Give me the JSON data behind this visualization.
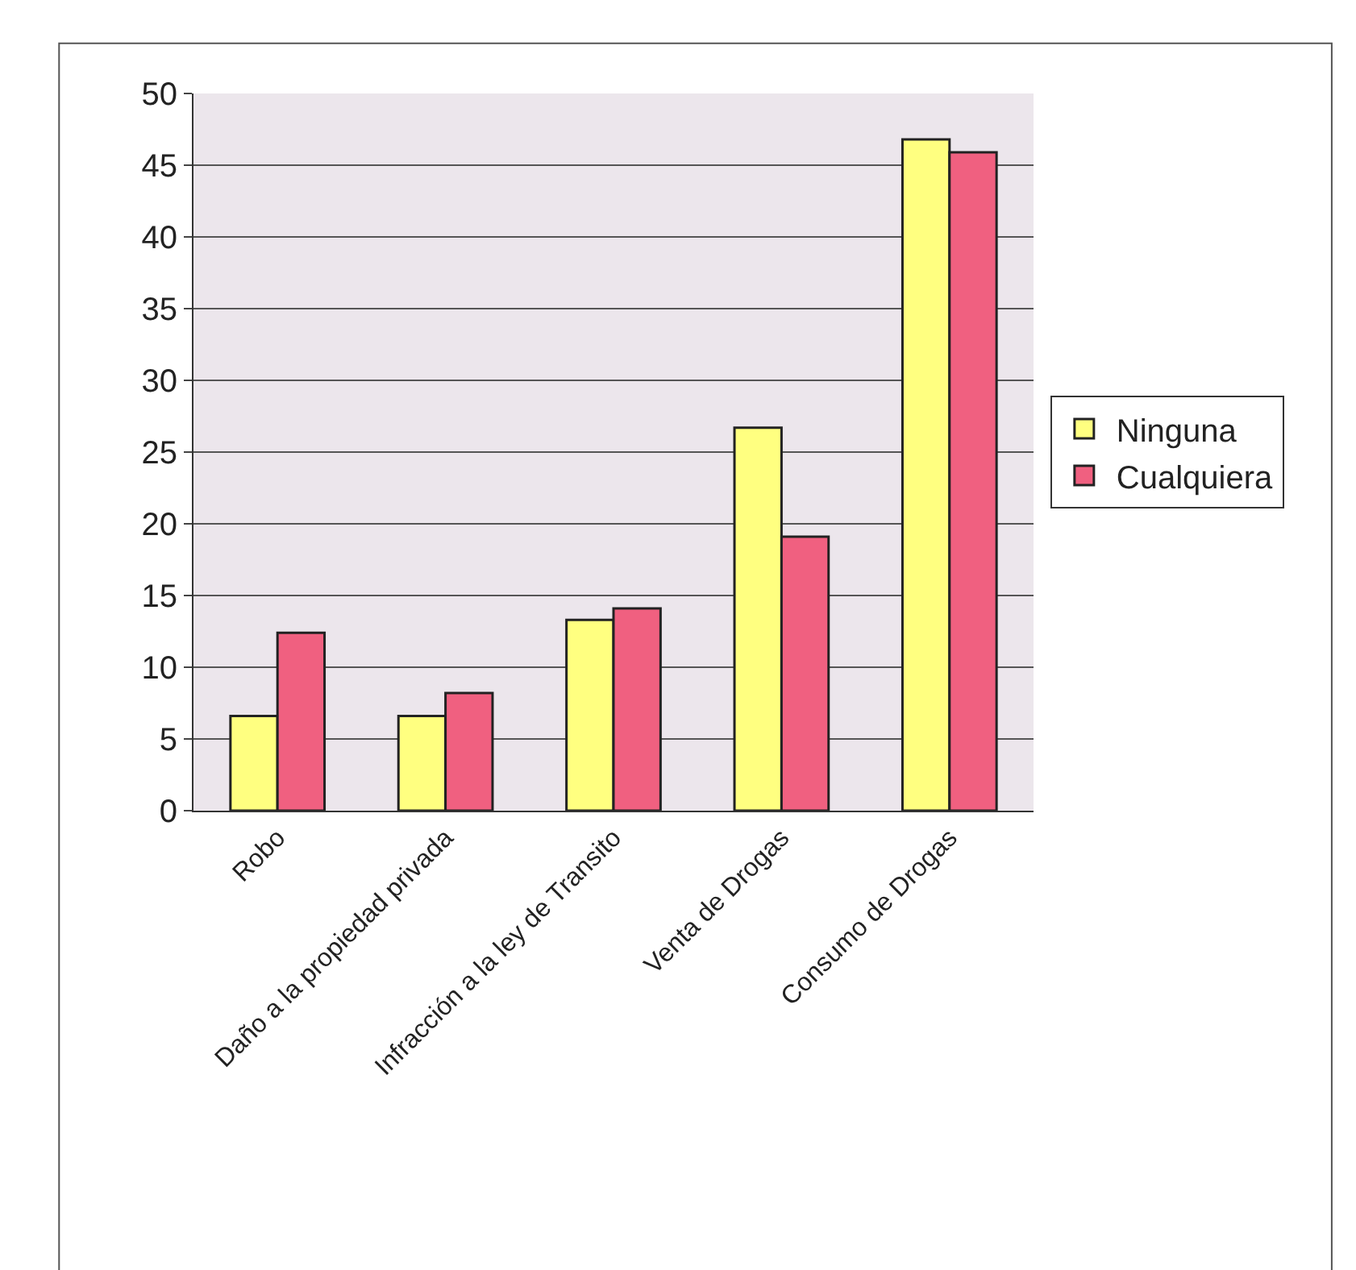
{
  "chart_data": {
    "type": "bar",
    "categories": [
      "Robo",
      "Daño a la propiedad privada",
      "Infracción a la ley de Transito",
      "Venta de Drogas",
      "Consumo de Drogas"
    ],
    "series": [
      {
        "name": "Ninguna",
        "color": "#ffff80",
        "values": [
          6.6,
          6.6,
          13.3,
          26.7,
          46.8
        ]
      },
      {
        "name": "Cualquiera",
        "color": "#f06080",
        "values": [
          12.4,
          8.2,
          14.1,
          19.1,
          45.9
        ]
      }
    ],
    "ylim": [
      0,
      50
    ],
    "yticks": [
      0,
      5,
      10,
      15,
      20,
      25,
      30,
      35,
      40,
      45,
      50
    ],
    "grid": "y",
    "legend": "right"
  }
}
